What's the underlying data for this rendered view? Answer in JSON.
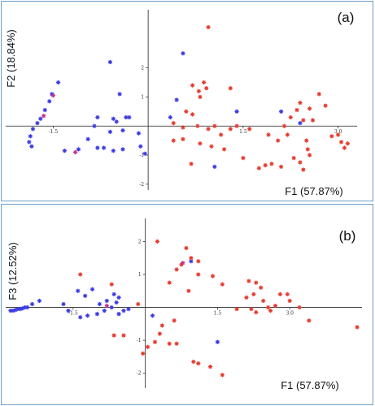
{
  "chart_data": [
    {
      "type": "scatter",
      "panel_label": "(a)",
      "xlabel": "F1 (57.87%)",
      "ylabel": "F2 (18.84%)",
      "x_ticks": [
        {
          "value": -1.5,
          "label": "-1.5"
        },
        {
          "value": 1.5,
          "label": "1.5"
        },
        {
          "value": 3.0,
          "label": "3.0"
        }
      ],
      "y_ticks": [
        {
          "value": 2,
          "label": "2"
        },
        {
          "value": 1,
          "label": "1"
        },
        {
          "value": -1,
          "label": "-1"
        },
        {
          "value": -2,
          "label": "-2"
        }
      ],
      "xlim": [
        -2.25,
        3.3
      ],
      "ylim": [
        -2.2,
        4.0
      ],
      "colors": {
        "blue": "#3a3ae6",
        "red": "#e63a2e",
        "magenta": "#c8348c"
      },
      "series": [
        {
          "color": "blue",
          "points": [
            [
              -1.42,
              1.5
            ],
            [
              -1.52,
              1.1
            ],
            [
              -1.56,
              0.85
            ],
            [
              -1.63,
              0.55
            ],
            [
              -1.7,
              0.25
            ],
            [
              -1.75,
              0.1
            ],
            [
              -1.82,
              -0.1
            ],
            [
              -1.86,
              -0.35
            ],
            [
              -1.88,
              -0.55
            ],
            [
              -1.84,
              -0.7
            ],
            [
              -0.6,
              2.2
            ],
            [
              -0.45,
              1.1
            ],
            [
              -0.8,
              0.3
            ],
            [
              -0.55,
              0.25
            ],
            [
              -0.5,
              0.15
            ],
            [
              -0.35,
              0.3
            ],
            [
              -0.3,
              0.3
            ],
            [
              -0.85,
              0.0
            ],
            [
              -0.6,
              -0.2
            ],
            [
              -0.4,
              -0.15
            ],
            [
              -0.15,
              -0.25
            ],
            [
              -0.95,
              -0.45
            ],
            [
              -0.8,
              -0.75
            ],
            [
              -0.7,
              -0.75
            ],
            [
              -0.55,
              -0.85
            ],
            [
              -0.4,
              -0.8
            ],
            [
              -1.1,
              -0.8
            ],
            [
              -1.32,
              -0.85
            ],
            [
              -0.12,
              -0.7
            ],
            [
              -0.05,
              -0.95
            ],
            [
              0.55,
              2.5
            ],
            [
              0.45,
              0.9
            ],
            [
              0.35,
              0.3
            ],
            [
              1.4,
              0.5
            ],
            [
              1.05,
              -1.4
            ],
            [
              2.1,
              0.5
            ],
            [
              2.4,
              0.1
            ]
          ]
        },
        {
          "color": "red",
          "points": [
            [
              0.95,
              3.4
            ],
            [
              0.7,
              1.4
            ],
            [
              0.88,
              1.5
            ],
            [
              0.92,
              1.3
            ],
            [
              0.8,
              1.2
            ],
            [
              0.82,
              1.0
            ],
            [
              1.3,
              1.3
            ],
            [
              0.6,
              0.5
            ],
            [
              0.4,
              0.1
            ],
            [
              0.55,
              -0.05
            ],
            [
              0.7,
              0.4
            ],
            [
              0.78,
              0.0
            ],
            [
              0.95,
              -0.1
            ],
            [
              1.05,
              0.0
            ],
            [
              1.15,
              -0.3
            ],
            [
              1.3,
              -0.1
            ],
            [
              1.4,
              0.0
            ],
            [
              1.6,
              -0.1
            ],
            [
              1.9,
              -0.3
            ],
            [
              2.05,
              -0.5
            ],
            [
              2.15,
              0.0
            ],
            [
              2.25,
              0.3
            ],
            [
              2.35,
              0.55
            ],
            [
              2.4,
              0.8
            ],
            [
              2.45,
              0.2
            ],
            [
              2.55,
              0.6
            ],
            [
              2.6,
              0.2
            ],
            [
              2.7,
              1.1
            ],
            [
              2.8,
              0.7
            ],
            [
              2.5,
              -0.5
            ],
            [
              2.52,
              -0.8
            ],
            [
              2.55,
              -1.0
            ],
            [
              2.4,
              -1.25
            ],
            [
              2.45,
              -1.5
            ],
            [
              2.3,
              -1.1
            ],
            [
              2.1,
              -1.4
            ],
            [
              1.95,
              -1.3
            ],
            [
              1.85,
              -1.35
            ],
            [
              1.75,
              -1.45
            ],
            [
              1.5,
              -1.1
            ],
            [
              1.2,
              -0.8
            ],
            [
              1.0,
              -0.7
            ],
            [
              0.82,
              -0.6
            ],
            [
              0.55,
              -0.45
            ],
            [
              0.68,
              -1.3
            ],
            [
              0.4,
              -0.5
            ],
            [
              3.0,
              -0.3
            ],
            [
              3.05,
              -0.55
            ],
            [
              3.1,
              -0.75
            ],
            [
              3.15,
              -0.6
            ],
            [
              2.9,
              -0.35
            ],
            [
              2.2,
              -0.3
            ]
          ]
        },
        {
          "color": "magenta",
          "points": [
            [
              -1.5,
              1.05
            ],
            [
              -1.65,
              0.35
            ],
            [
              -1.15,
              -0.9
            ]
          ]
        }
      ]
    },
    {
      "type": "scatter",
      "panel_label": "(b)",
      "xlabel": "F1 (57.87%)",
      "ylabel": "F3 (12.52%)",
      "x_ticks": [
        {
          "value": -1.5,
          "label": "-1.5"
        },
        {
          "value": 1.5,
          "label": "1.5"
        },
        {
          "value": 3.0,
          "label": "3.0"
        }
      ],
      "y_ticks": [
        {
          "value": 2,
          "label": "2"
        },
        {
          "value": 1,
          "label": "1"
        },
        {
          "value": -1,
          "label": "-1"
        },
        {
          "value": -2,
          "label": "-2"
        }
      ],
      "xlim": [
        -2.9,
        4.5
      ],
      "ylim": [
        -2.45,
        2.7
      ],
      "colors": {
        "blue": "#3a3ae6",
        "red": "#e63a2e",
        "magenta": "#c8348c"
      },
      "series": [
        {
          "color": "blue",
          "points": [
            [
              -2.8,
              -0.1
            ],
            [
              -2.75,
              -0.1
            ],
            [
              -2.7,
              -0.08
            ],
            [
              -2.65,
              -0.05
            ],
            [
              -2.6,
              -0.05
            ],
            [
              -2.55,
              -0.03
            ],
            [
              -2.5,
              0.0
            ],
            [
              -2.45,
              0.0
            ],
            [
              -2.35,
              0.1
            ],
            [
              -2.2,
              0.2
            ],
            [
              -1.7,
              0.1
            ],
            [
              -1.6,
              -0.1
            ],
            [
              -1.4,
              0.5
            ],
            [
              -1.25,
              0.35
            ],
            [
              -1.1,
              0.55
            ],
            [
              -0.95,
              0.1
            ],
            [
              -0.8,
              0.2
            ],
            [
              -0.65,
              0.4
            ],
            [
              -0.55,
              0.3
            ],
            [
              -0.6,
              0.15
            ],
            [
              -0.7,
              0.0
            ],
            [
              -0.85,
              -0.1
            ],
            [
              -1.0,
              -0.2
            ],
            [
              -1.2,
              -0.25
            ],
            [
              -1.35,
              -0.3
            ],
            [
              -0.55,
              -0.2
            ],
            [
              -0.45,
              -0.1
            ],
            [
              -0.35,
              -0.05
            ],
            [
              0.15,
              -0.25
            ],
            [
              0.95,
              1.4
            ],
            [
              1.5,
              -1.05
            ]
          ]
        },
        {
          "color": "red",
          "points": [
            [
              0.25,
              2.0
            ],
            [
              0.85,
              1.8
            ],
            [
              0.95,
              1.5
            ],
            [
              1.1,
              1.4
            ],
            [
              0.75,
              1.3
            ],
            [
              0.65,
              1.15
            ],
            [
              1.1,
              1.0
            ],
            [
              1.4,
              0.95
            ],
            [
              0.9,
              0.5
            ],
            [
              0.5,
              0.75
            ],
            [
              1.6,
              0.7
            ],
            [
              2.15,
              0.8
            ],
            [
              2.3,
              0.75
            ],
            [
              2.4,
              0.6
            ],
            [
              2.25,
              0.4
            ],
            [
              2.1,
              0.3
            ],
            [
              2.8,
              0.4
            ],
            [
              2.95,
              0.4
            ],
            [
              3.0,
              0.2
            ],
            [
              2.7,
              0.05
            ],
            [
              2.55,
              0.0
            ],
            [
              2.2,
              -0.05
            ],
            [
              1.9,
              -0.05
            ],
            [
              2.3,
              -0.15
            ],
            [
              2.6,
              -0.1
            ],
            [
              2.45,
              0.2
            ],
            [
              3.2,
              0.0
            ],
            [
              0.6,
              -0.4
            ],
            [
              0.35,
              -0.55
            ],
            [
              0.3,
              -0.8
            ],
            [
              0.2,
              -1.05
            ],
            [
              0.05,
              -1.2
            ],
            [
              -0.65,
              -0.85
            ],
            [
              -0.45,
              -0.85
            ],
            [
              0.5,
              -1.1
            ],
            [
              0.65,
              -1.1
            ],
            [
              1.0,
              -1.65
            ],
            [
              1.1,
              -1.7
            ],
            [
              1.35,
              -1.8
            ],
            [
              1.6,
              -2.05
            ],
            [
              4.4,
              -0.6
            ],
            [
              3.4,
              -0.4
            ],
            [
              -1.35,
              1.0
            ],
            [
              -0.7,
              0.7
            ],
            [
              -0.15,
              0.1
            ],
            [
              -0.05,
              -1.4
            ]
          ]
        },
        {
          "color": "magenta",
          "points": [
            [
              0.78,
              1.35
            ],
            [
              -0.8,
              0.05
            ]
          ]
        }
      ]
    }
  ]
}
